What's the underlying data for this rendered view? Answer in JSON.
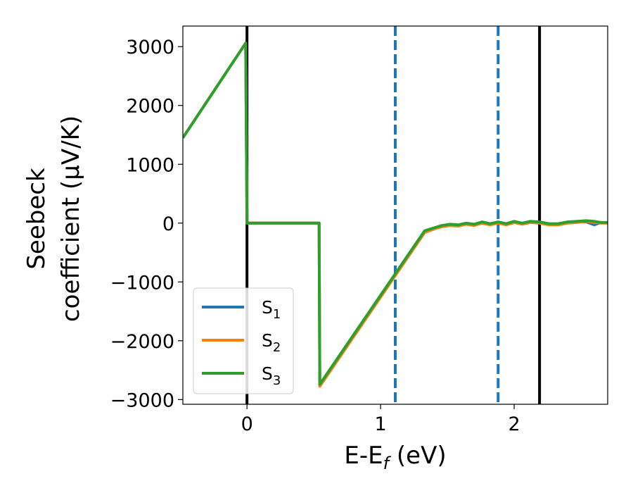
{
  "chart_data": {
    "type": "line",
    "xlabel": "E-E_f (eV)",
    "xlabel_main": "E-E",
    "xlabel_sub": "f",
    "xlabel_unit": " (eV)",
    "ylabel_line1": "Seebeck",
    "ylabel_line2": "coefficient  (μV/K)",
    "xlim": [
      -0.48,
      2.7
    ],
    "ylim": [
      -3080,
      3350
    ],
    "xticks": [
      0,
      1,
      2
    ],
    "xtick_labels": [
      "0",
      "1",
      "2"
    ],
    "yticks": [
      3000,
      2000,
      1000,
      0,
      -1000,
      -2000,
      -3000
    ],
    "ytick_labels": [
      "3000",
      "2000",
      "1000",
      "0",
      "−1000",
      "−2000",
      "−3000"
    ],
    "grid": false,
    "legend_position": "lower-left",
    "vlines": [
      {
        "x": 0.0,
        "style": "solid",
        "color": "#000000"
      },
      {
        "x": 2.19,
        "style": "solid",
        "color": "#000000"
      },
      {
        "x": 1.11,
        "style": "dashed",
        "color": "#1f77b4"
      },
      {
        "x": 1.88,
        "style": "dashed",
        "color": "#1f77b4"
      }
    ],
    "series": [
      {
        "name": "S1",
        "label_main": "S",
        "label_sub": "1",
        "color": "#1f77b4",
        "x": [
          -0.48,
          -0.01,
          0.0,
          0.54,
          0.545,
          1.33,
          1.4,
          1.46,
          1.52,
          1.58,
          1.64,
          1.7,
          1.76,
          1.82,
          1.88,
          1.94,
          2.0,
          2.06,
          2.12,
          2.19,
          2.26,
          2.33,
          2.4,
          2.47,
          2.54,
          2.6,
          2.65,
          2.7
        ],
        "y": [
          1450,
          3060,
          0,
          0,
          -2760,
          -140,
          -90,
          -50,
          -30,
          -40,
          -10,
          -30,
          10,
          -20,
          10,
          -20,
          20,
          -10,
          20,
          10,
          -20,
          -20,
          10,
          20,
          20,
          -30,
          10,
          0
        ]
      },
      {
        "name": "S2",
        "label_main": "S",
        "label_sub": "2",
        "color": "#ff7f0e",
        "x": [
          -0.48,
          -0.01,
          0.0,
          0.54,
          0.545,
          1.33,
          1.4,
          1.46,
          1.52,
          1.58,
          1.64,
          1.7,
          1.76,
          1.82,
          1.88,
          1.94,
          2.0,
          2.06,
          2.12,
          2.19,
          2.26,
          2.33,
          2.4,
          2.47,
          2.54,
          2.6,
          2.65,
          2.7
        ],
        "y": [
          1450,
          3060,
          0,
          0,
          -2775,
          -160,
          -100,
          -60,
          -40,
          -50,
          -20,
          -40,
          0,
          -30,
          0,
          -30,
          10,
          -20,
          10,
          0,
          -30,
          -30,
          0,
          10,
          30,
          10,
          0,
          0
        ]
      },
      {
        "name": "S3",
        "label_main": "S",
        "label_sub": "3",
        "color": "#2ca02c",
        "x": [
          -0.48,
          -0.01,
          0.0,
          0.54,
          0.545,
          1.33,
          1.4,
          1.46,
          1.52,
          1.58,
          1.64,
          1.7,
          1.76,
          1.82,
          1.88,
          1.94,
          2.0,
          2.06,
          2.12,
          2.19,
          2.26,
          2.33,
          2.4,
          2.47,
          2.54,
          2.6,
          2.65,
          2.7
        ],
        "y": [
          1450,
          3060,
          0,
          0,
          -2740,
          -130,
          -80,
          -40,
          -20,
          -30,
          0,
          -20,
          20,
          -10,
          20,
          -10,
          30,
          0,
          30,
          20,
          -10,
          -10,
          20,
          30,
          40,
          30,
          10,
          10
        ]
      }
    ]
  }
}
